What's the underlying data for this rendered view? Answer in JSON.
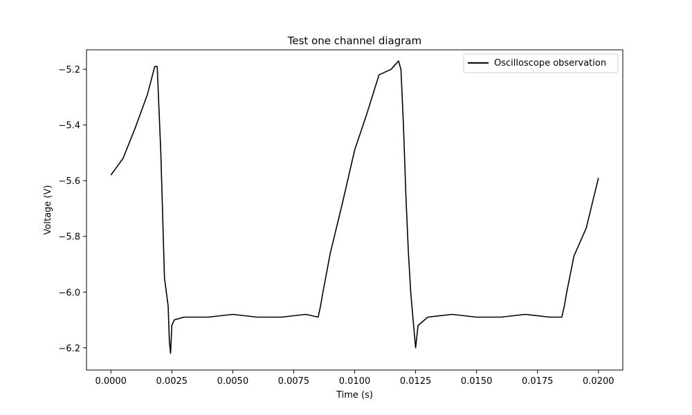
{
  "chart_data": {
    "type": "line",
    "title": "Test one channel diagram",
    "xlabel": "Time (s)",
    "ylabel": "Voltage (V)",
    "xlim": [
      -0.001,
      0.021
    ],
    "ylim": [
      -6.28,
      -5.13
    ],
    "xticks": [
      0.0,
      0.0025,
      0.005,
      0.0075,
      0.01,
      0.0125,
      0.015,
      0.0175,
      0.02
    ],
    "xtick_labels": [
      "0.0000",
      "0.0025",
      "0.0050",
      "0.0075",
      "0.0100",
      "0.0125",
      "0.0150",
      "0.0175",
      "0.0200"
    ],
    "yticks": [
      -5.2,
      -5.4,
      -5.6,
      -5.8,
      -6.0,
      -6.2
    ],
    "ytick_labels": [
      "−5.2",
      "−5.4",
      "−5.6",
      "−5.8",
      "−6.0",
      "−6.2"
    ],
    "grid": false,
    "legend_position": "top-right",
    "series": [
      {
        "name": "Oscilloscope observation",
        "color": "#000000",
        "x": [
          0.0,
          0.0005,
          0.001,
          0.0015,
          0.0018,
          0.0019,
          0.00205,
          0.0022,
          0.00235,
          0.0024,
          0.00245,
          0.0025,
          0.0026,
          0.003,
          0.004,
          0.005,
          0.006,
          0.007,
          0.008,
          0.0085,
          0.0086,
          0.0087,
          0.009,
          0.0095,
          0.01,
          0.0105,
          0.011,
          0.0115,
          0.0118,
          0.0119,
          0.012,
          0.0121,
          0.0122,
          0.0123,
          0.0124,
          0.0125,
          0.0126,
          0.013,
          0.014,
          0.015,
          0.016,
          0.017,
          0.018,
          0.0185,
          0.0186,
          0.0187,
          0.019,
          0.0195,
          0.02
        ],
        "y": [
          -5.58,
          -5.52,
          -5.41,
          -5.29,
          -5.19,
          -5.19,
          -5.5,
          -5.95,
          -6.05,
          -6.18,
          -6.22,
          -6.12,
          -6.1,
          -6.09,
          -6.09,
          -6.08,
          -6.09,
          -6.09,
          -6.08,
          -6.09,
          -6.05,
          -6.0,
          -5.86,
          -5.68,
          -5.49,
          -5.36,
          -5.22,
          -5.2,
          -5.17,
          -5.2,
          -5.4,
          -5.65,
          -5.85,
          -6.0,
          -6.1,
          -6.2,
          -6.12,
          -6.09,
          -6.08,
          -6.09,
          -6.09,
          -6.08,
          -6.09,
          -6.09,
          -6.05,
          -6.0,
          -5.87,
          -5.77,
          -5.59
        ]
      }
    ]
  }
}
